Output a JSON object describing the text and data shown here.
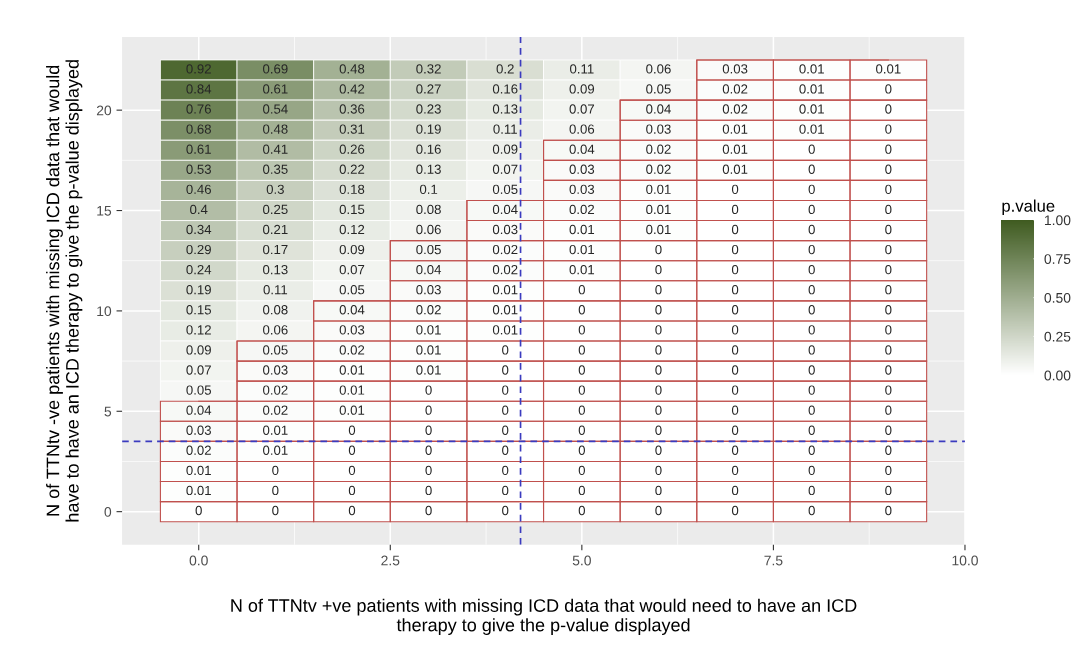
{
  "chart_data": {
    "type": "heatmap",
    "xlabel": "N of TTNtv +ve patients with missing ICD data that would need to have an ICD\ntherapy to give the p-value displayed",
    "ylabel": "N of TTNtv -ve patients with missing ICD data that would\nhave to have an ICD therapy to give the p-value displayed",
    "clabel": "p.value",
    "x": [
      0,
      1,
      2,
      3,
      4,
      5,
      6,
      7,
      8,
      9
    ],
    "y": [
      22,
      21,
      20,
      19,
      18,
      17,
      16,
      15,
      14,
      13,
      12,
      11,
      10,
      9,
      8,
      7,
      6,
      5,
      4,
      3,
      2,
      1,
      0
    ],
    "cells": [
      [
        0.92,
        0.69,
        0.48,
        0.32,
        0.2,
        0.11,
        0.06,
        0.03,
        0.01,
        0.01
      ],
      [
        0.84,
        0.61,
        0.42,
        0.27,
        0.16,
        0.09,
        0.05,
        0.02,
        0.01,
        0
      ],
      [
        0.76,
        0.54,
        0.36,
        0.23,
        0.13,
        0.07,
        0.04,
        0.02,
        0.01,
        0
      ],
      [
        0.68,
        0.48,
        0.31,
        0.19,
        0.11,
        0.06,
        0.03,
        0.01,
        0.01,
        0
      ],
      [
        0.61,
        0.41,
        0.26,
        0.16,
        0.09,
        0.04,
        0.02,
        0.01,
        0,
        0
      ],
      [
        0.53,
        0.35,
        0.22,
        0.13,
        0.07,
        0.03,
        0.02,
        0.01,
        0,
        0
      ],
      [
        0.46,
        0.3,
        0.18,
        0.1,
        0.05,
        0.03,
        0.01,
        0,
        0,
        0
      ],
      [
        0.4,
        0.25,
        0.15,
        0.08,
        0.04,
        0.02,
        0.01,
        0,
        0,
        0
      ],
      [
        0.34,
        0.21,
        0.12,
        0.06,
        0.03,
        0.01,
        0.01,
        0,
        0,
        0
      ],
      [
        0.29,
        0.17,
        0.09,
        0.05,
        0.02,
        0.01,
        0,
        0,
        0,
        0
      ],
      [
        0.24,
        0.13,
        0.07,
        0.04,
        0.02,
        0.01,
        0,
        0,
        0,
        0
      ],
      [
        0.19,
        0.11,
        0.05,
        0.03,
        0.01,
        0,
        0,
        0,
        0,
        0
      ],
      [
        0.15,
        0.08,
        0.04,
        0.02,
        0.01,
        0,
        0,
        0,
        0,
        0
      ],
      [
        0.12,
        0.06,
        0.03,
        0.01,
        0.01,
        0,
        0,
        0,
        0,
        0
      ],
      [
        0.09,
        0.05,
        0.02,
        0.01,
        0,
        0,
        0,
        0,
        0,
        0
      ],
      [
        0.07,
        0.03,
        0.01,
        0.01,
        0,
        0,
        0,
        0,
        0,
        0
      ],
      [
        0.05,
        0.02,
        0.01,
        0,
        0,
        0,
        0,
        0,
        0,
        0
      ],
      [
        0.04,
        0.02,
        0.01,
        0,
        0,
        0,
        0,
        0,
        0,
        0
      ],
      [
        0.03,
        0.01,
        0,
        0,
        0,
        0,
        0,
        0,
        0,
        0
      ],
      [
        0.02,
        0.01,
        0,
        0,
        0,
        0,
        0,
        0,
        0,
        0
      ],
      [
        0.01,
        0,
        0,
        0,
        0,
        0,
        0,
        0,
        0,
        0
      ],
      [
        0.01,
        0,
        0,
        0,
        0,
        0,
        0,
        0,
        0,
        0
      ],
      [
        0,
        0,
        0,
        0,
        0,
        0,
        0,
        0,
        0,
        0
      ]
    ],
    "data_labels": true,
    "colors": [
      "#ffffff",
      "#3f5b20"
    ],
    "series": [
      {
        "type": "step",
        "color": "#c0504d",
        "x": [
          0,
          1,
          2,
          3,
          4,
          5,
          6,
          7,
          8,
          9
        ],
        "values": [
          5.5,
          8.5,
          10.5,
          13.5,
          15.5,
          18.5,
          20.5,
          22.5,
          22.5,
          22.5
        ],
        "value_labels": [
          null,
          null,
          null,
          null,
          null,
          null,
          null,
          null,
          null,
          null
        ]
      }
    ],
    "xlim": [
      -1,
      10
    ],
    "xticks": [
      {
        "value": 0,
        "label": "0.0"
      },
      {
        "value": 2.5,
        "label": "2.5"
      },
      {
        "value": 5,
        "label": "5.0"
      },
      {
        "value": 7.5,
        "label": "7.5"
      },
      {
        "value": 10,
        "label": "10.0"
      }
    ],
    "ylim": [
      -1.65,
      23.65
    ],
    "yticks": [
      0,
      5,
      10,
      15,
      20
    ],
    "clim": [
      0,
      1
    ],
    "cticks": [
      {
        "value": 0,
        "label": "0.00"
      },
      {
        "value": 0.25,
        "label": "0.25"
      },
      {
        "value": 0.5,
        "label": "0.50"
      },
      {
        "value": 0.75,
        "label": "0.75"
      },
      {
        "value": 1,
        "label": "1.00"
      }
    ],
    "ref_lines": [
      {
        "axis": "x",
        "value": 4.2,
        "color": "#3b3bbf",
        "line_style": "dashed"
      },
      {
        "axis": "y",
        "value": 3.5,
        "color": "#3b3bbf",
        "line_style": "dashed"
      }
    ],
    "grid": true
  }
}
